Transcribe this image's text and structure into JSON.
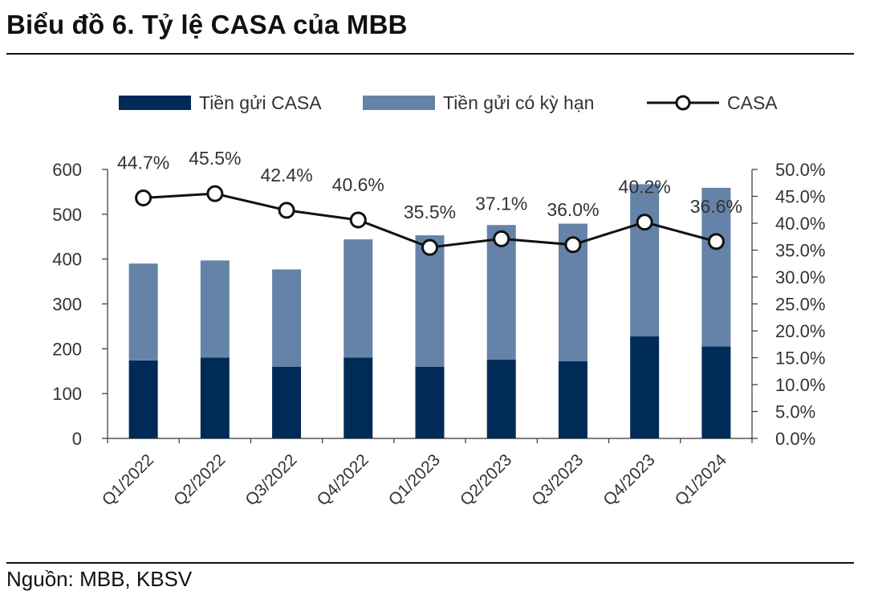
{
  "header": {
    "title": "Biểu đồ 6. Tỷ lệ CASA của MBB"
  },
  "footer": {
    "source": "Nguồn: MBB, KBSV"
  },
  "colors": {
    "casa_bar": "#002b57",
    "term_bar": "#6583a8",
    "line": "#111111",
    "axis": "#333333"
  },
  "chart_data": {
    "type": "bar",
    "stacked": true,
    "categories": [
      "Q1/2022",
      "Q2/2022",
      "Q3/2022",
      "Q4/2022",
      "Q1/2023",
      "Q2/2023",
      "Q3/2023",
      "Q4/2023",
      "Q1/2024"
    ],
    "series": [
      {
        "name": "Tiền gửi CASA",
        "kind": "bar",
        "axis": "left",
        "values": [
          174,
          180,
          160,
          180,
          160,
          176,
          172,
          228,
          205
        ]
      },
      {
        "name": "Tiền gửi có kỳ hạn",
        "kind": "bar",
        "axis": "left",
        "values": [
          216,
          217,
          217,
          264,
          293,
          300,
          307,
          339,
          354
        ]
      },
      {
        "name": "CASA",
        "kind": "line",
        "axis": "right",
        "values": [
          44.7,
          45.5,
          42.4,
          40.6,
          35.5,
          37.1,
          36.0,
          40.2,
          36.6
        ],
        "labels": [
          "44.7%",
          "45.5%",
          "42.4%",
          "40.6%",
          "35.5%",
          "37.1%",
          "36.0%",
          "40.2%",
          "36.6%"
        ]
      }
    ],
    "left_axis": {
      "ylim": [
        0,
        600
      ],
      "ticks": [
        "0",
        "100",
        "200",
        "300",
        "400",
        "500",
        "600"
      ]
    },
    "right_axis": {
      "ylim": [
        0,
        50
      ],
      "ticks": [
        "0.0%",
        "5.0%",
        "10.0%",
        "15.0%",
        "20.0%",
        "25.0%",
        "30.0%",
        "35.0%",
        "40.0%",
        "45.0%",
        "50.0%"
      ]
    },
    "legend_position": "top-center",
    "grid": false
  }
}
